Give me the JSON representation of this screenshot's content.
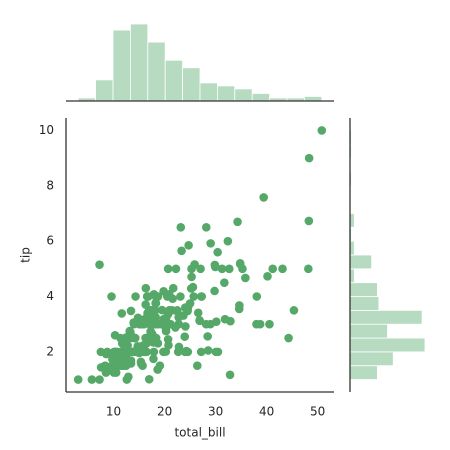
{
  "chart_data": [
    {
      "type": "scatter",
      "x_label": "total_bill",
      "y_label": "tip",
      "color": "#55a868",
      "xlim": [
        0.68,
        53.2
      ],
      "ylim": [
        0.55,
        10.45
      ],
      "xticks": [
        10,
        20,
        30,
        40,
        50
      ],
      "yticks": [
        2,
        4,
        6,
        8,
        10
      ],
      "x": [
        16.99,
        10.34,
        21.01,
        23.68,
        24.59,
        25.29,
        8.77,
        26.88,
        15.04,
        14.78,
        10.27,
        35.26,
        15.42,
        18.43,
        14.83,
        21.58,
        10.33,
        16.29,
        16.97,
        20.65,
        17.92,
        20.29,
        15.77,
        39.42,
        19.82,
        17.81,
        13.37,
        12.69,
        21.7,
        19.65,
        9.55,
        18.35,
        15.06,
        20.69,
        17.78,
        24.06,
        16.31,
        16.93,
        18.69,
        31.27,
        16.04,
        17.46,
        13.94,
        9.68,
        30.4,
        18.29,
        22.23,
        32.4,
        28.55,
        18.04,
        12.54,
        10.29,
        34.81,
        9.94,
        25.56,
        19.49,
        38.01,
        26.41,
        11.24,
        48.27,
        20.29,
        13.81,
        11.02,
        18.29,
        17.59,
        20.08,
        16.45,
        3.07,
        20.23,
        15.01,
        12.02,
        17.07,
        26.86,
        25.28,
        14.73,
        10.51,
        17.92,
        27.2,
        22.76,
        17.29,
        19.44,
        16.66,
        10.07,
        32.68,
        15.98,
        34.83,
        13.03,
        18.28,
        24.71,
        21.16,
        28.97,
        22.49,
        5.75,
        16.32,
        22.75,
        40.17,
        27.28,
        12.03,
        21.01,
        12.46,
        11.35,
        15.38,
        44.3,
        22.42,
        20.92,
        15.36,
        20.49,
        25.21,
        18.24,
        14.31,
        14.0,
        7.25,
        38.07,
        23.95,
        25.71,
        17.31,
        29.93,
        10.65,
        12.43,
        24.08,
        11.69,
        13.42,
        14.26,
        15.95,
        12.48,
        29.8,
        8.52,
        14.52,
        11.38,
        22.82,
        19.08,
        20.27,
        11.17,
        12.26,
        18.26,
        8.51,
        10.33,
        14.15,
        16.0,
        13.16,
        17.47,
        34.3,
        41.19,
        27.05,
        16.43,
        8.35,
        18.64,
        11.87,
        9.78,
        7.51,
        14.07,
        13.13,
        17.26,
        24.55,
        19.77,
        29.85,
        48.17,
        25.0,
        13.39,
        16.49,
        21.5,
        12.66,
        16.21,
        13.81,
        17.51,
        24.52,
        20.76,
        31.71,
        10.59,
        10.63,
        50.81,
        15.81,
        7.25,
        31.85,
        16.82,
        32.9,
        17.89,
        14.48,
        9.6,
        34.63,
        34.65,
        23.33,
        45.35,
        23.17,
        40.55,
        20.69,
        20.9,
        30.46,
        18.15,
        23.1,
        15.69,
        19.81,
        28.44,
        15.48,
        16.58,
        7.56,
        10.34,
        43.11,
        13.0,
        13.51,
        18.71,
        12.74,
        13.0,
        16.4,
        20.53,
        16.47,
        26.59,
        38.73,
        24.27,
        12.76,
        30.06,
        25.89,
        48.33,
        13.27,
        28.17,
        12.9,
        28.15,
        11.59,
        7.74,
        30.14,
        12.16,
        13.42,
        8.58,
        15.98,
        13.42,
        16.27,
        10.09,
        20.45,
        13.28,
        22.12,
        24.01,
        15.69,
        11.61,
        10.77,
        15.53,
        10.07,
        12.6,
        32.83,
        35.83,
        29.03,
        27.18,
        22.67,
        17.82,
        18.78
      ],
      "values": [
        1.01,
        1.66,
        3.5,
        3.31,
        3.61,
        4.71,
        2.0,
        3.12,
        1.96,
        3.23,
        1.71,
        5.0,
        1.57,
        3.0,
        3.02,
        3.92,
        1.67,
        3.71,
        3.5,
        3.35,
        4.08,
        2.75,
        2.23,
        7.58,
        3.18,
        2.34,
        2.0,
        2.0,
        4.3,
        3.0,
        1.45,
        2.5,
        3.0,
        2.45,
        3.27,
        3.6,
        2.0,
        3.07,
        2.31,
        5.0,
        2.24,
        2.54,
        3.06,
        1.32,
        5.6,
        3.0,
        5.0,
        6.0,
        2.05,
        3.0,
        2.5,
        2.6,
        5.2,
        1.56,
        4.34,
        3.51,
        3.0,
        1.5,
        1.76,
        6.73,
        3.21,
        2.0,
        1.98,
        3.76,
        2.64,
        3.15,
        2.47,
        1.0,
        2.01,
        2.09,
        1.97,
        3.0,
        3.14,
        5.0,
        2.2,
        1.25,
        3.08,
        4.0,
        3.0,
        2.71,
        3.0,
        3.4,
        1.83,
        5.0,
        2.03,
        5.17,
        2.0,
        4.0,
        5.85,
        3.0,
        3.0,
        3.5,
        1.0,
        4.3,
        3.25,
        4.73,
        4.0,
        1.5,
        3.0,
        1.5,
        2.5,
        3.0,
        2.5,
        3.48,
        4.08,
        1.64,
        4.06,
        4.29,
        3.76,
        4.0,
        3.0,
        1.0,
        4.0,
        2.55,
        4.0,
        3.5,
        5.07,
        1.5,
        1.8,
        2.92,
        2.31,
        1.68,
        2.5,
        2.0,
        2.52,
        4.2,
        1.48,
        2.0,
        2.0,
        2.18,
        1.5,
        2.83,
        1.5,
        2.0,
        3.25,
        1.25,
        2.0,
        2.0,
        2.0,
        2.75,
        3.5,
        6.7,
        5.0,
        5.0,
        2.3,
        1.5,
        1.36,
        1.63,
        1.73,
        2.0,
        2.5,
        2.0,
        2.74,
        2.0,
        2.0,
        5.14,
        5.0,
        3.75,
        2.61,
        2.0,
        3.5,
        2.5,
        2.0,
        2.0,
        3.0,
        3.48,
        2.24,
        4.5,
        1.61,
        2.0,
        10.0,
        3.16,
        5.15,
        3.18,
        4.0,
        3.11,
        2.0,
        2.0,
        4.0,
        3.55,
        3.68,
        5.65,
        3.5,
        6.5,
        3.0,
        5.0,
        3.5,
        2.0,
        3.5,
        4.0,
        1.5,
        4.19,
        2.56,
        2.02,
        4.0,
        1.44,
        2.0,
        5.0,
        2.0,
        2.0,
        4.0,
        2.01,
        2.0,
        2.5,
        4.0,
        3.23,
        3.41,
        3.0,
        2.03,
        2.23,
        2.0,
        5.16,
        9.0,
        2.5,
        6.5,
        1.1,
        3.0,
        1.5,
        1.44,
        3.09,
        2.2,
        3.48,
        1.92,
        3.0,
        1.58,
        2.5,
        2.0,
        3.0,
        2.72,
        2.88,
        2.0,
        3.0,
        3.39,
        1.47,
        3.0,
        1.25,
        1.0,
        1.17,
        4.67,
        5.92,
        2.0,
        2.0,
        1.75,
        3.0
      ]
    },
    {
      "type": "histogram",
      "orientation": "vertical",
      "color": "#b6dbc1",
      "bins": [
        3.07,
        6.48,
        9.89,
        13.3,
        16.71,
        20.12,
        23.53,
        26.94,
        30.35,
        33.76,
        37.17,
        40.58,
        43.99,
        47.4,
        50.81
      ],
      "values": [
        2,
        14,
        47,
        51,
        39,
        27,
        22,
        12,
        10,
        8,
        5,
        2,
        2,
        3
      ]
    },
    {
      "type": "histogram",
      "orientation": "horizontal",
      "color": "#b6dbc1",
      "bins": [
        1,
        1.5,
        2,
        2.5,
        3,
        3.5,
        4,
        4.5,
        5,
        5.5,
        6,
        6.5,
        7,
        7.5,
        8,
        8.5,
        9,
        9.5,
        10
      ],
      "values": [
        19,
        30,
        52,
        26,
        50,
        20,
        19,
        3,
        15,
        3,
        1,
        3,
        0,
        0,
        1,
        0,
        1,
        1
      ]
    }
  ]
}
